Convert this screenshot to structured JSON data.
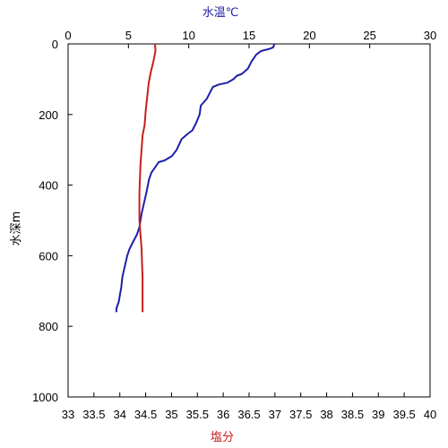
{
  "chart_data": {
    "type": "line",
    "top_axis": {
      "label": "水温℃",
      "color": "#1f1fa8",
      "range": [
        0,
        30
      ],
      "ticks": [
        "0",
        "5",
        "10",
        "15",
        "20",
        "25",
        "30"
      ]
    },
    "bottom_axis": {
      "label": "塩分",
      "color": "#c81e1e",
      "range": [
        33,
        40
      ],
      "ticks": [
        "33",
        "33.5",
        "34",
        "34.5",
        "35",
        "35.5",
        "36",
        "36.5",
        "37",
        "37.5",
        "38",
        "38.5",
        "39",
        "39.5",
        "40"
      ]
    },
    "y_axis": {
      "label": "水深m",
      "range": [
        0,
        1000
      ],
      "inverted": true,
      "ticks": [
        "0",
        "200",
        "400",
        "600",
        "800",
        "1000"
      ]
    },
    "grid": false,
    "series": [
      {
        "color": "#1f1fa8",
        "x_axis": "top",
        "points": [
          [
            17.1,
            0
          ],
          [
            17.0,
            10
          ],
          [
            16.6,
            15
          ],
          [
            16.0,
            20
          ],
          [
            15.6,
            30
          ],
          [
            15.2,
            50
          ],
          [
            14.9,
            70
          ],
          [
            14.4,
            85
          ],
          [
            14.0,
            90
          ],
          [
            13.7,
            100
          ],
          [
            13.2,
            110
          ],
          [
            12.5,
            115
          ],
          [
            12.0,
            122
          ],
          [
            11.8,
            135
          ],
          [
            11.5,
            155
          ],
          [
            11.0,
            175
          ],
          [
            10.9,
            200
          ],
          [
            10.6,
            225
          ],
          [
            10.3,
            245
          ],
          [
            9.9,
            255
          ],
          [
            9.4,
            270
          ],
          [
            9.0,
            300
          ],
          [
            8.6,
            318
          ],
          [
            8.0,
            330
          ],
          [
            7.5,
            335
          ],
          [
            7.2,
            350
          ],
          [
            6.9,
            365
          ],
          [
            6.7,
            385
          ],
          [
            6.5,
            420
          ],
          [
            6.3,
            450
          ],
          [
            6.1,
            480
          ],
          [
            6.0,
            500
          ],
          [
            5.9,
            520
          ],
          [
            5.7,
            540
          ],
          [
            5.4,
            560
          ],
          [
            5.1,
            580
          ],
          [
            4.9,
            600
          ],
          [
            4.7,
            630
          ],
          [
            4.5,
            660
          ],
          [
            4.4,
            690
          ],
          [
            4.3,
            710
          ],
          [
            4.2,
            730
          ],
          [
            4.0,
            750
          ],
          [
            4.0,
            760
          ]
        ]
      },
      {
        "color": "#c81e1e",
        "x_axis": "bottom",
        "points": [
          [
            34.68,
            0
          ],
          [
            34.69,
            20
          ],
          [
            34.65,
            50
          ],
          [
            34.6,
            80
          ],
          [
            34.56,
            110
          ],
          [
            34.53,
            150
          ],
          [
            34.5,
            190
          ],
          [
            34.48,
            230
          ],
          [
            34.44,
            260
          ],
          [
            34.42,
            300
          ],
          [
            34.4,
            340
          ],
          [
            34.39,
            380
          ],
          [
            34.38,
            420
          ],
          [
            34.38,
            460
          ],
          [
            34.38,
            500
          ],
          [
            34.4,
            540
          ],
          [
            34.42,
            580
          ],
          [
            34.43,
            620
          ],
          [
            34.44,
            660
          ],
          [
            34.44,
            700
          ],
          [
            34.44,
            740
          ],
          [
            34.44,
            760
          ]
        ]
      }
    ]
  }
}
